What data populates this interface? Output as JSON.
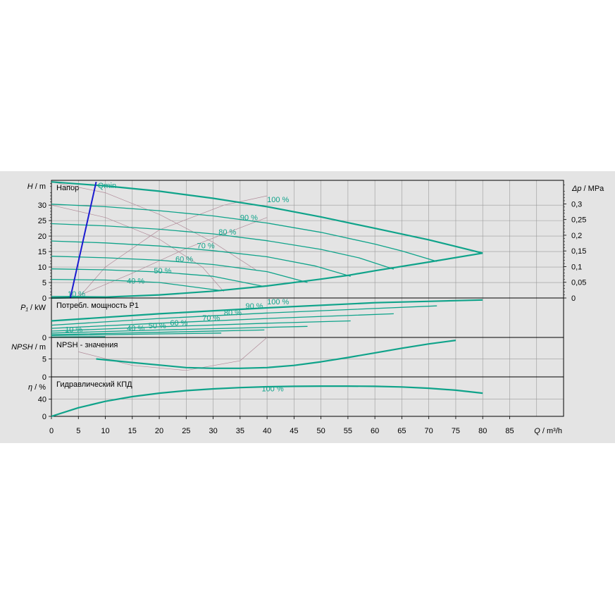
{
  "chart_data": {
    "type": "line",
    "x_axis": {
      "range": [
        0,
        95
      ],
      "ticks": [
        0,
        5,
        10,
        15,
        20,
        25,
        30,
        35,
        40,
        45,
        50,
        55,
        60,
        65,
        70,
        75,
        80,
        85
      ],
      "tick_labels": [
        "0",
        "5",
        "10",
        "15",
        "20",
        "25",
        "30",
        "35",
        "40",
        "45",
        "50",
        "55",
        "60",
        "65",
        "70",
        "75",
        "80",
        "85"
      ],
      "label_symbol": "Q",
      "label_unit": " / m³/h"
    },
    "colors": {
      "curve": "#0fa38a",
      "qmin_line": "#1b1bd0",
      "thin_line": "#b08a98",
      "grid": "#9a9a9a"
    },
    "panels": [
      {
        "id": "head",
        "title": "Напор",
        "y_label_symbol": "H",
        "y_label_unit": " / m",
        "y_range": [
          0,
          38
        ],
        "y_ticks": [
          0,
          5,
          10,
          15,
          20,
          25,
          30
        ],
        "y_tick_labels": [
          "0",
          "5",
          "10",
          "15",
          "20",
          "25",
          "30"
        ],
        "right_axis": {
          "label_symbol": "Δp",
          "label_unit": " / MPa",
          "ticks": [
            0,
            0.05,
            0.1,
            0.15,
            0.2,
            0.25,
            0.3
          ],
          "tick_labels": [
            "0",
            "0,05",
            "0,1",
            "0,15",
            "0,2",
            "0,25",
            "0,3"
          ]
        },
        "annotation": "Qmin",
        "qmin_line": {
          "x": [
            3.5,
            8.3
          ],
          "y": [
            0,
            37.5
          ]
        },
        "series": [
          {
            "name": "100 %",
            "label_at": [
              40,
              31
            ],
            "x": [
              0,
              10,
              20,
              30,
              40,
              50,
              60,
              70,
              80
            ],
            "y": [
              37.5,
              36.2,
              34.5,
              32.2,
              29.5,
              26.2,
              22.5,
              18.8,
              14.5
            ]
          },
          {
            "name": "90 %",
            "label_at": [
              35,
              25.2
            ],
            "x": [
              0,
              10,
              20,
              30,
              40,
              50,
              60,
              65,
              71.5
            ],
            "y": [
              30.3,
              29.5,
              28.2,
              26.5,
              24.2,
              21.2,
              17.4,
              15.2,
              11.8
            ]
          },
          {
            "name": "80 %",
            "label_at": [
              31,
              20.5
            ],
            "x": [
              0,
              10,
              20,
              30,
              40,
              50,
              57,
              63.5
            ],
            "y": [
              24,
              23.3,
              22.2,
              20.7,
              18.5,
              15.7,
              13,
              9.3
            ]
          },
          {
            "name": "70 %",
            "label_at": [
              27,
              16
            ],
            "x": [
              0,
              10,
              20,
              30,
              40,
              49,
              55.5
            ],
            "y": [
              18.4,
              17.8,
              16.8,
              15.3,
              13.3,
              10.3,
              7
            ]
          },
          {
            "name": "60 %",
            "label_at": [
              23,
              11.7
            ],
            "x": [
              0,
              10,
              20,
              30,
              40,
              47.5
            ],
            "y": [
              13.5,
              13,
              12.2,
              10.8,
              8.5,
              5
            ]
          },
          {
            "name": "50 %",
            "label_at": [
              19,
              8
            ],
            "x": [
              0,
              10,
              20,
              30,
              39.5
            ],
            "y": [
              9.4,
              9.1,
              8.4,
              7,
              3.7
            ]
          },
          {
            "name": "40 %",
            "label_at": [
              14,
              4.7
            ],
            "x": [
              0,
              10,
              20,
              31.5
            ],
            "y": [
              6,
              5.8,
              5,
              2.4
            ]
          },
          {
            "name": "10 %",
            "label_at": [
              3,
              0.5
            ],
            "x": [
              0,
              5,
              10
            ],
            "y": [
              0.5,
              0.5,
              0.4
            ]
          },
          {
            "name": "",
            "x": [
              0,
              10,
              20,
              30,
              40,
              50,
              55,
              60,
              70,
              80
            ],
            "y": [
              0,
              0.3,
              1,
              2.2,
              3.9,
              6.1,
              7.3,
              8.8,
              11.6,
              14.5
            ]
          }
        ]
      },
      {
        "id": "power",
        "title": "Потребл. мощность P1",
        "y_label_symbol": "P₁",
        "y_label_unit": " / kW",
        "y_range": [
          0,
          10
        ],
        "y_ticks": [
          0
        ],
        "y_tick_labels": [
          "0"
        ],
        "series": [
          {
            "name": "100 %",
            "label_at": [
              40,
              8.4
            ],
            "x": [
              0,
              20,
              40,
              60,
              80
            ],
            "y": [
              4.2,
              6,
              7.5,
              8.8,
              9.5
            ]
          },
          {
            "name": "90 %",
            "label_at": [
              36,
              7.3
            ],
            "x": [
              0,
              20,
              40,
              71.5
            ],
            "y": [
              3.1,
              4.8,
              6.2,
              8
            ]
          },
          {
            "name": "80 %",
            "label_at": [
              32,
              5.6
            ],
            "x": [
              0,
              20,
              40,
              63.5
            ],
            "y": [
              2.3,
              3.6,
              4.8,
              6
            ]
          },
          {
            "name": "70 %",
            "label_at": [
              28,
              4.3
            ],
            "x": [
              0,
              20,
              40,
              55.5
            ],
            "y": [
              1.6,
              2.7,
              3.6,
              4.2
            ]
          },
          {
            "name": "60 %",
            "label_at": [
              22,
              3
            ],
            "x": [
              0,
              20,
              47.5
            ],
            "y": [
              1.1,
              1.9,
              2.8
            ]
          },
          {
            "name": "50 %",
            "label_at": [
              18,
              2.3
            ],
            "x": [
              0,
              20,
              39.5
            ],
            "y": [
              0.7,
              1.3,
              1.9
            ]
          },
          {
            "name": "40 %",
            "label_at": [
              14,
              1.7
            ],
            "x": [
              0,
              20,
              31.5
            ],
            "y": [
              0.5,
              0.9,
              1.1
            ]
          },
          {
            "name": "10 %",
            "label_at": [
              2.5,
              1.3
            ],
            "x": [
              0,
              10
            ],
            "y": [
              0.1,
              0.2
            ]
          }
        ]
      },
      {
        "id": "npsh",
        "title": "NPSH - значения",
        "y_label_symbol": "NPSH",
        "y_label_unit": " / m",
        "y_range": [
          0,
          11
        ],
        "y_ticks": [
          0,
          5
        ],
        "y_tick_labels": [
          "0",
          "5"
        ],
        "series": [
          {
            "name": "",
            "x": [
              8.3,
              15,
              20,
              25,
              30,
              35,
              40,
              45,
              50,
              55,
              60,
              65,
              70,
              75
            ],
            "y": [
              5,
              4,
              3.3,
              2.6,
              2.4,
              2.4,
              2.6,
              3.2,
              4.2,
              5.4,
              6.7,
              8,
              9.2,
              10.2
            ]
          }
        ]
      },
      {
        "id": "efficiency",
        "title": "Гидравлический КПД",
        "y_label_symbol": "η",
        "y_label_unit": " / %",
        "y_range": [
          0,
          92
        ],
        "y_ticks": [
          0,
          40
        ],
        "y_tick_labels": [
          "0",
          "40"
        ],
        "series": [
          {
            "name": "100 %",
            "label_at": [
              39,
              58
            ],
            "x": [
              0,
              5,
              10,
              15,
              20,
              25,
              30,
              35,
              40,
              45,
              50,
              55,
              60,
              65,
              70,
              75,
              80
            ],
            "y": [
              0,
              20,
              35,
              46,
              54,
              60,
              64,
              67,
              69,
              70,
              70.5,
              70.5,
              70,
              68.5,
              65.5,
              61,
              54
            ]
          }
        ]
      }
    ]
  }
}
